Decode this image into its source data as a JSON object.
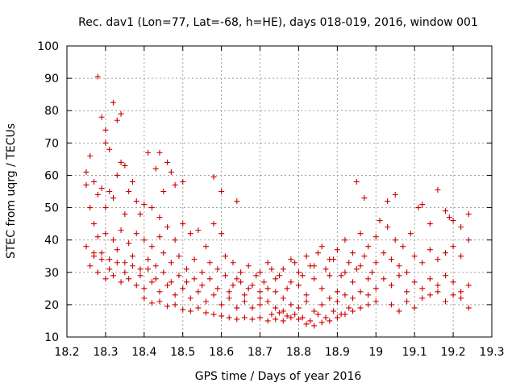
{
  "chart_data": {
    "type": "scatter",
    "title": "Rec. dav1 (Lon=77, Lat=-68, h=HE), days 018-019, 2016, window 001",
    "xlabel": "GPS time / Days of year 2016",
    "ylabel": "STEC from uqrg / TECUs",
    "xlim": [
      18.2,
      19.3
    ],
    "ylim": [
      10,
      100
    ],
    "xticks": [
      18.2,
      18.3,
      18.4,
      18.5,
      18.6,
      18.7,
      18.8,
      18.9,
      19,
      19.1,
      19.2,
      19.3
    ],
    "xtick_labels": [
      "18.2",
      "18.3",
      "18.4",
      "18.5",
      "18.6",
      "18.7",
      "18.8",
      "18.9",
      "19",
      "19.1",
      "19.2",
      "19.3"
    ],
    "yticks": [
      10,
      20,
      30,
      40,
      50,
      60,
      70,
      80,
      90,
      100
    ],
    "ytick_labels": [
      "10",
      "20",
      "30",
      "40",
      "50",
      "60",
      "70",
      "80",
      "90",
      "100"
    ],
    "grid": true,
    "marker": "+",
    "color": "#cc0000",
    "points": [
      [
        18.28,
        90.5
      ],
      [
        18.32,
        82.5
      ],
      [
        18.3,
        70
      ],
      [
        18.33,
        77
      ],
      [
        18.29,
        78
      ],
      [
        18.34,
        79
      ],
      [
        18.31,
        68
      ],
      [
        18.3,
        74
      ],
      [
        18.26,
        66
      ],
      [
        18.25,
        61
      ],
      [
        18.27,
        58
      ],
      [
        18.29,
        56
      ],
      [
        18.31,
        55
      ],
      [
        18.34,
        64
      ],
      [
        18.35,
        63
      ],
      [
        18.37,
        58
      ],
      [
        18.33,
        60
      ],
      [
        18.25,
        57
      ],
      [
        18.26,
        50
      ],
      [
        18.28,
        54
      ],
      [
        18.3,
        50
      ],
      [
        18.32,
        53
      ],
      [
        18.36,
        55
      ],
      [
        18.38,
        52
      ],
      [
        18.4,
        51
      ],
      [
        18.41,
        67
      ],
      [
        18.43,
        62
      ],
      [
        18.44,
        67
      ],
      [
        18.46,
        64
      ],
      [
        18.47,
        61
      ],
      [
        18.45,
        55
      ],
      [
        18.48,
        57
      ],
      [
        18.5,
        58
      ],
      [
        18.42,
        50
      ],
      [
        18.44,
        47
      ],
      [
        18.39,
        48
      ],
      [
        18.35,
        48
      ],
      [
        18.27,
        45
      ],
      [
        18.28,
        41
      ],
      [
        18.3,
        42
      ],
      [
        18.32,
        40
      ],
      [
        18.34,
        43
      ],
      [
        18.36,
        39
      ],
      [
        18.38,
        42
      ],
      [
        18.4,
        40
      ],
      [
        18.42,
        38
      ],
      [
        18.44,
        41
      ],
      [
        18.46,
        44
      ],
      [
        18.48,
        40
      ],
      [
        18.5,
        45
      ],
      [
        18.52,
        42
      ],
      [
        18.54,
        43
      ],
      [
        18.56,
        38
      ],
      [
        18.58,
        45
      ],
      [
        18.6,
        42
      ],
      [
        18.58,
        59.5
      ],
      [
        18.6,
        55
      ],
      [
        18.64,
        52
      ],
      [
        18.25,
        38
      ],
      [
        18.27,
        35
      ],
      [
        18.29,
        36
      ],
      [
        18.31,
        34
      ],
      [
        18.33,
        37
      ],
      [
        18.35,
        33
      ],
      [
        18.37,
        35
      ],
      [
        18.39,
        31
      ],
      [
        18.41,
        34
      ],
      [
        18.43,
        32
      ],
      [
        18.45,
        36
      ],
      [
        18.47,
        33
      ],
      [
        18.49,
        35
      ],
      [
        18.51,
        31
      ],
      [
        18.53,
        34
      ],
      [
        18.55,
        30
      ],
      [
        18.57,
        33
      ],
      [
        18.59,
        31
      ],
      [
        18.61,
        35
      ],
      [
        18.63,
        33
      ],
      [
        18.65,
        30
      ],
      [
        18.67,
        32
      ],
      [
        18.26,
        32
      ],
      [
        18.28,
        30
      ],
      [
        18.3,
        28
      ],
      [
        18.32,
        29
      ],
      [
        18.34,
        27
      ],
      [
        18.36,
        28
      ],
      [
        18.38,
        26
      ],
      [
        18.4,
        25
      ],
      [
        18.42,
        27
      ],
      [
        18.44,
        24
      ],
      [
        18.46,
        26
      ],
      [
        18.48,
        23
      ],
      [
        18.5,
        25
      ],
      [
        18.52,
        22
      ],
      [
        18.54,
        24
      ],
      [
        18.56,
        21
      ],
      [
        18.58,
        23
      ],
      [
        18.6,
        20
      ],
      [
        18.62,
        22
      ],
      [
        18.64,
        19
      ],
      [
        18.66,
        21
      ],
      [
        18.68,
        19
      ],
      [
        18.7,
        20
      ],
      [
        18.4,
        22
      ],
      [
        18.42,
        20.5
      ],
      [
        18.44,
        21
      ],
      [
        18.46,
        19.5
      ],
      [
        18.48,
        20
      ],
      [
        18.5,
        18.5
      ],
      [
        18.52,
        18
      ],
      [
        18.54,
        19
      ],
      [
        18.56,
        17.5
      ],
      [
        18.58,
        17
      ],
      [
        18.6,
        16.5
      ],
      [
        18.62,
        16
      ],
      [
        18.64,
        15.5
      ],
      [
        18.66,
        16
      ],
      [
        18.68,
        15.5
      ],
      [
        18.7,
        16
      ],
      [
        18.72,
        15
      ],
      [
        18.74,
        15.5
      ],
      [
        18.76,
        15
      ],
      [
        18.78,
        16
      ],
      [
        18.8,
        15.5
      ],
      [
        18.82,
        14
      ],
      [
        18.84,
        13.5
      ],
      [
        18.86,
        14.5
      ],
      [
        18.88,
        15
      ],
      [
        18.9,
        16
      ],
      [
        18.92,
        17
      ],
      [
        18.94,
        18
      ],
      [
        18.96,
        19
      ],
      [
        18.98,
        20
      ],
      [
        19.0,
        21
      ],
      [
        18.7,
        22
      ],
      [
        18.72,
        25
      ],
      [
        18.74,
        24
      ],
      [
        18.76,
        22
      ],
      [
        18.78,
        27
      ],
      [
        18.8,
        26
      ],
      [
        18.82,
        23
      ],
      [
        18.84,
        28
      ],
      [
        18.86,
        25
      ],
      [
        18.88,
        29
      ],
      [
        18.9,
        24
      ],
      [
        18.92,
        30
      ],
      [
        18.94,
        27
      ],
      [
        18.96,
        32
      ],
      [
        18.98,
        28
      ],
      [
        19.0,
        33
      ],
      [
        18.7,
        30
      ],
      [
        18.72,
        33
      ],
      [
        18.74,
        28
      ],
      [
        18.76,
        31
      ],
      [
        18.78,
        34
      ],
      [
        18.8,
        30
      ],
      [
        18.82,
        35
      ],
      [
        18.84,
        32
      ],
      [
        18.86,
        38
      ],
      [
        18.88,
        34
      ],
      [
        18.9,
        37
      ],
      [
        18.92,
        40
      ],
      [
        18.94,
        36
      ],
      [
        18.96,
        42
      ],
      [
        18.98,
        38
      ],
      [
        19.0,
        41
      ],
      [
        18.95,
        58
      ],
      [
        18.97,
        53
      ],
      [
        19.03,
        52
      ],
      [
        19.05,
        54
      ],
      [
        19.01,
        46
      ],
      [
        19.03,
        44
      ],
      [
        19.05,
        40
      ],
      [
        19.07,
        38
      ],
      [
        19.09,
        42
      ],
      [
        19.11,
        50
      ],
      [
        19.12,
        51
      ],
      [
        19.14,
        45
      ],
      [
        19.16,
        55.5
      ],
      [
        19.18,
        49
      ],
      [
        19.19,
        47
      ],
      [
        19.2,
        46
      ],
      [
        19.22,
        44
      ],
      [
        19.24,
        48
      ],
      [
        19.02,
        36
      ],
      [
        19.04,
        34
      ],
      [
        19.06,
        32
      ],
      [
        19.08,
        30
      ],
      [
        19.1,
        35
      ],
      [
        19.12,
        33
      ],
      [
        19.14,
        37
      ],
      [
        19.16,
        34
      ],
      [
        19.18,
        36
      ],
      [
        19.2,
        38
      ],
      [
        19.22,
        35
      ],
      [
        19.24,
        40
      ],
      [
        19.02,
        28
      ],
      [
        19.04,
        26
      ],
      [
        19.06,
        29
      ],
      [
        19.08,
        24
      ],
      [
        19.1,
        27
      ],
      [
        19.12,
        25
      ],
      [
        19.14,
        28
      ],
      [
        19.16,
        26
      ],
      [
        19.18,
        29
      ],
      [
        19.2,
        27
      ],
      [
        19.22,
        24
      ],
      [
        19.24,
        26
      ],
      [
        19.04,
        20
      ],
      [
        19.06,
        18
      ],
      [
        19.08,
        21
      ],
      [
        19.1,
        19
      ],
      [
        19.12,
        22
      ],
      [
        19.14,
        23
      ],
      [
        19.16,
        24
      ],
      [
        19.18,
        21
      ],
      [
        19.2,
        23
      ],
      [
        19.22,
        22
      ],
      [
        19.24,
        19
      ],
      [
        18.65,
        27
      ],
      [
        18.67,
        25
      ],
      [
        18.69,
        29
      ],
      [
        18.71,
        27
      ],
      [
        18.73,
        31
      ],
      [
        18.75,
        29
      ],
      [
        18.77,
        25
      ],
      [
        18.79,
        33
      ],
      [
        18.81,
        29
      ],
      [
        18.83,
        32
      ],
      [
        18.85,
        36
      ],
      [
        18.87,
        31
      ],
      [
        18.89,
        34
      ],
      [
        18.91,
        29
      ],
      [
        18.93,
        33
      ],
      [
        18.95,
        31
      ],
      [
        18.97,
        35
      ],
      [
        18.99,
        30
      ],
      [
        18.62,
        24
      ],
      [
        18.64,
        28
      ],
      [
        18.66,
        23
      ],
      [
        18.68,
        26
      ],
      [
        18.7,
        24
      ],
      [
        18.72,
        21
      ],
      [
        18.74,
        19
      ],
      [
        18.76,
        18
      ],
      [
        18.78,
        20
      ],
      [
        18.8,
        19
      ],
      [
        18.82,
        21
      ],
      [
        18.84,
        18
      ],
      [
        18.86,
        20
      ],
      [
        18.88,
        22
      ],
      [
        18.9,
        21
      ],
      [
        18.92,
        23
      ],
      [
        18.94,
        22
      ],
      [
        18.96,
        24
      ],
      [
        18.98,
        23
      ],
      [
        19.0,
        25
      ],
      [
        18.73,
        17
      ],
      [
        18.75,
        17.5
      ],
      [
        18.77,
        16.5
      ],
      [
        18.79,
        17
      ],
      [
        18.81,
        16
      ],
      [
        18.83,
        15
      ],
      [
        18.85,
        17
      ],
      [
        18.87,
        16
      ],
      [
        18.89,
        18
      ],
      [
        18.91,
        17
      ],
      [
        18.93,
        19
      ],
      [
        18.55,
        26
      ],
      [
        18.57,
        28
      ],
      [
        18.59,
        25
      ],
      [
        18.61,
        29
      ],
      [
        18.63,
        26
      ],
      [
        18.53,
        28
      ],
      [
        18.51,
        27
      ],
      [
        18.49,
        29
      ],
      [
        18.47,
        27
      ],
      [
        18.45,
        30
      ],
      [
        18.43,
        28
      ],
      [
        18.41,
        31
      ],
      [
        18.39,
        29
      ],
      [
        18.37,
        32
      ],
      [
        18.35,
        30
      ],
      [
        18.33,
        33
      ],
      [
        18.31,
        31
      ],
      [
        18.29,
        34
      ],
      [
        18.27,
        36
      ]
    ]
  }
}
